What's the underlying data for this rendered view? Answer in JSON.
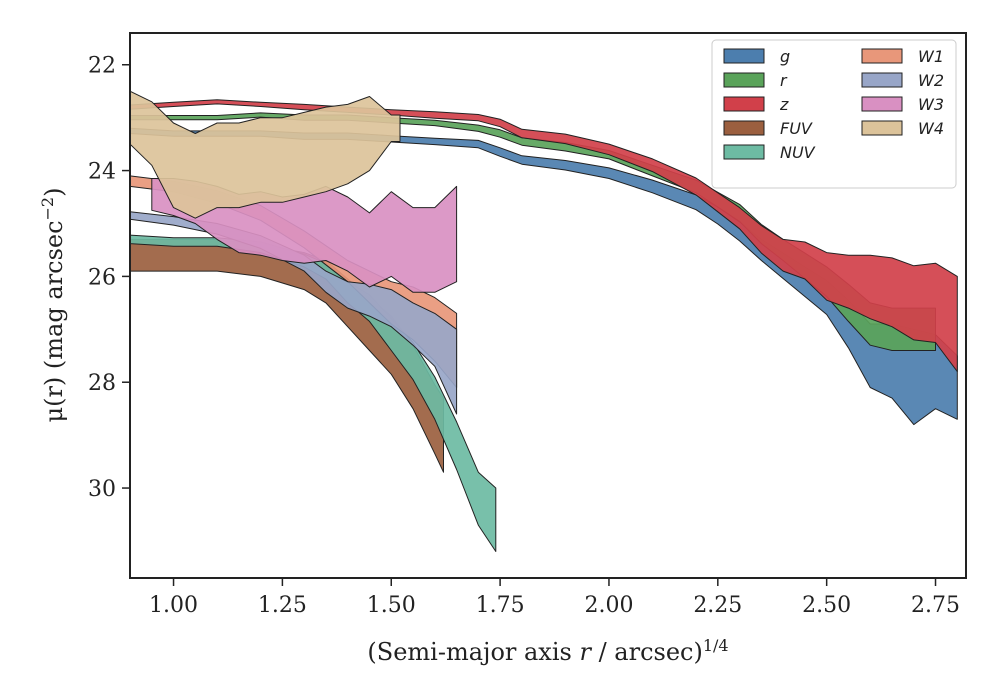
{
  "chart_data": {
    "type": "area",
    "xlabel_main": "(Semi-major axis ",
    "xlabel_var": "r",
    "xlabel_tail": " / arcsec)",
    "xlabel_sup": "1/4",
    "ylabel_main": "μ(r) (mag arcsec",
    "ylabel_sup": "−2",
    "ylabel_close": ")",
    "xlim": [
      0.9,
      2.82
    ],
    "ylim": [
      31.7,
      21.4
    ],
    "y_inverted": true,
    "x_ticks": [
      "1.00",
      "1.25",
      "1.50",
      "1.75",
      "2.00",
      "2.25",
      "2.50",
      "2.75"
    ],
    "y_ticks": [
      "22",
      "24",
      "26",
      "28",
      "30"
    ],
    "legend": {
      "placement": "top-right",
      "columns": 2
    },
    "series": [
      {
        "name": "g",
        "color": "#4c7eae",
        "x": [
          0.9,
          1.0,
          1.1,
          1.2,
          1.3,
          1.4,
          1.5,
          1.6,
          1.7,
          1.75,
          1.8,
          1.9,
          2.0,
          2.1,
          2.2,
          2.25,
          2.3,
          2.35,
          2.4,
          2.45,
          2.5,
          2.55,
          2.6,
          2.65,
          2.7,
          2.75,
          2.8
        ],
        "y": [
          23.25,
          23.3,
          23.3,
          23.3,
          23.35,
          23.35,
          23.4,
          23.45,
          23.5,
          23.65,
          23.8,
          23.9,
          24.05,
          24.3,
          24.6,
          24.85,
          25.15,
          25.5,
          25.8,
          26.1,
          26.4,
          26.9,
          27.5,
          27.6,
          27.9,
          27.8,
          28.1
        ],
        "err": [
          0.05,
          0.05,
          0.05,
          0.05,
          0.06,
          0.06,
          0.06,
          0.06,
          0.07,
          0.08,
          0.08,
          0.09,
          0.1,
          0.12,
          0.14,
          0.16,
          0.18,
          0.2,
          0.24,
          0.28,
          0.32,
          0.45,
          0.6,
          0.7,
          0.9,
          0.7,
          0.6
        ]
      },
      {
        "name": "r",
        "color": "#5aa35a",
        "x": [
          0.9,
          1.0,
          1.1,
          1.2,
          1.3,
          1.4,
          1.5,
          1.6,
          1.7,
          1.75,
          1.8,
          1.9,
          2.0,
          2.1,
          2.2,
          2.25,
          2.3,
          2.35,
          2.4,
          2.45,
          2.5,
          2.55,
          2.6,
          2.65,
          2.7,
          2.75
        ],
        "y": [
          23.0,
          23.0,
          23.0,
          22.95,
          23.0,
          23.0,
          23.05,
          23.1,
          23.2,
          23.3,
          23.45,
          23.55,
          23.7,
          24.0,
          24.3,
          24.55,
          24.8,
          25.2,
          25.5,
          25.8,
          26.1,
          26.5,
          26.9,
          27.0,
          27.0,
          27.0
        ],
        "err": [
          0.04,
          0.04,
          0.04,
          0.04,
          0.05,
          0.05,
          0.05,
          0.05,
          0.06,
          0.07,
          0.07,
          0.08,
          0.08,
          0.1,
          0.12,
          0.14,
          0.16,
          0.18,
          0.2,
          0.24,
          0.28,
          0.35,
          0.4,
          0.4,
          0.4,
          0.4
        ]
      },
      {
        "name": "z",
        "color": "#d1404a",
        "x": [
          0.9,
          1.0,
          1.1,
          1.2,
          1.3,
          1.4,
          1.5,
          1.6,
          1.7,
          1.75,
          1.8,
          1.9,
          2.0,
          2.1,
          2.2,
          2.25,
          2.3,
          2.35,
          2.4,
          2.45,
          2.5,
          2.55,
          2.6,
          2.65,
          2.7,
          2.75,
          2.8
        ],
        "y": [
          22.8,
          22.75,
          22.7,
          22.75,
          22.8,
          22.85,
          22.9,
          22.95,
          23.0,
          23.1,
          23.3,
          23.4,
          23.6,
          23.9,
          24.3,
          24.6,
          24.9,
          25.3,
          25.6,
          25.7,
          26.0,
          26.1,
          26.2,
          26.3,
          26.5,
          26.5,
          26.9
        ],
        "err": [
          0.04,
          0.04,
          0.04,
          0.04,
          0.05,
          0.05,
          0.05,
          0.06,
          0.06,
          0.07,
          0.08,
          0.09,
          0.1,
          0.12,
          0.16,
          0.18,
          0.2,
          0.26,
          0.3,
          0.35,
          0.45,
          0.5,
          0.6,
          0.65,
          0.7,
          0.75,
          0.9
        ]
      },
      {
        "name": "FUV",
        "color": "#9b5f3f",
        "x": [
          0.9,
          1.0,
          1.1,
          1.2,
          1.3,
          1.35,
          1.4,
          1.45,
          1.5,
          1.55,
          1.6,
          1.62
        ],
        "y": [
          25.6,
          25.6,
          25.6,
          25.7,
          25.9,
          26.1,
          26.5,
          26.9,
          27.3,
          27.9,
          28.7,
          29.0
        ],
        "err": [
          0.3,
          0.3,
          0.3,
          0.3,
          0.35,
          0.4,
          0.45,
          0.5,
          0.55,
          0.6,
          0.65,
          0.7
        ]
      },
      {
        "name": "NUV",
        "color": "#6dbba3",
        "x": [
          0.9,
          1.0,
          1.1,
          1.2,
          1.3,
          1.35,
          1.4,
          1.45,
          1.5,
          1.55,
          1.6,
          1.65,
          1.7,
          1.74
        ],
        "y": [
          25.3,
          25.35,
          25.35,
          25.45,
          25.7,
          25.9,
          26.3,
          26.6,
          27.1,
          27.6,
          28.3,
          29.2,
          30.2,
          30.6
        ],
        "err": [
          0.08,
          0.08,
          0.08,
          0.1,
          0.12,
          0.15,
          0.2,
          0.25,
          0.3,
          0.35,
          0.4,
          0.45,
          0.5,
          0.6
        ]
      },
      {
        "name": "W1",
        "color": "#e8977a",
        "x": [
          0.9,
          1.0,
          1.1,
          1.2,
          1.3,
          1.35,
          1.4,
          1.45,
          1.5,
          1.55,
          1.6,
          1.65
        ],
        "y": [
          24.2,
          24.3,
          24.5,
          24.8,
          25.3,
          25.6,
          25.9,
          26.2,
          26.5,
          26.7,
          27.0,
          27.4
        ],
        "err": [
          0.1,
          0.1,
          0.12,
          0.14,
          0.16,
          0.18,
          0.2,
          0.3,
          0.4,
          0.5,
          0.6,
          0.7
        ]
      },
      {
        "name": "W2",
        "color": "#98a6c8",
        "x": [
          0.9,
          1.0,
          1.1,
          1.2,
          1.3,
          1.35,
          1.4,
          1.45,
          1.5,
          1.55,
          1.6,
          1.65
        ],
        "y": [
          24.85,
          24.95,
          25.1,
          25.35,
          25.75,
          26.1,
          26.35,
          26.45,
          26.6,
          26.9,
          27.2,
          27.8
        ],
        "err": [
          0.07,
          0.08,
          0.1,
          0.12,
          0.15,
          0.2,
          0.25,
          0.3,
          0.35,
          0.4,
          0.5,
          0.8
        ]
      },
      {
        "name": "W3",
        "color": "#d990c2",
        "x": [
          0.95,
          1.0,
          1.05,
          1.1,
          1.15,
          1.2,
          1.25,
          1.3,
          1.35,
          1.4,
          1.45,
          1.5,
          1.55,
          1.6,
          1.65
        ],
        "y": [
          24.45,
          24.5,
          24.6,
          24.8,
          25.0,
          25.0,
          25.1,
          25.1,
          25.0,
          25.2,
          25.5,
          25.2,
          25.5,
          25.5,
          25.2
        ],
        "err": [
          0.3,
          0.35,
          0.4,
          0.5,
          0.55,
          0.6,
          0.6,
          0.65,
          0.7,
          0.7,
          0.7,
          0.8,
          0.8,
          0.8,
          0.9
        ]
      },
      {
        "name": "W4",
        "color": "#dcc39a",
        "x": [
          0.9,
          0.95,
          1.0,
          1.05,
          1.1,
          1.15,
          1.2,
          1.25,
          1.3,
          1.35,
          1.4,
          1.45,
          1.5,
          1.52
        ],
        "y": [
          23.0,
          23.3,
          23.9,
          24.1,
          23.9,
          23.9,
          23.8,
          23.8,
          23.7,
          23.6,
          23.5,
          23.3,
          23.2,
          23.2
        ],
        "err": [
          0.5,
          0.6,
          0.8,
          0.8,
          0.8,
          0.8,
          0.8,
          0.8,
          0.8,
          0.8,
          0.75,
          0.7,
          0.25,
          0.25
        ]
      }
    ]
  }
}
